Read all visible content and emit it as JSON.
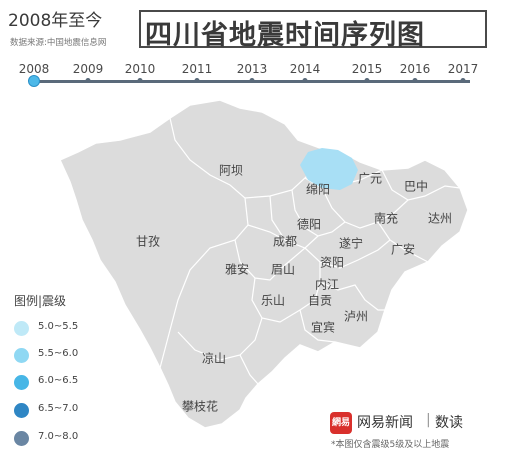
{
  "header": {
    "subtitle": "2008年至今",
    "title": "四川省地震时间序列图",
    "source": "数据来源:中国地震信息网"
  },
  "timeline": {
    "years": [
      "2008",
      "2009",
      "2010",
      "2011",
      "2013",
      "2014",
      "2015",
      "2016",
      "2017"
    ],
    "selected": "2008"
  },
  "map": {
    "region": "四川省",
    "cities": [
      "阿坝",
      "甘孜",
      "绵阳",
      "广元",
      "巴中",
      "德阳",
      "南充",
      "达州",
      "成都",
      "遂宁",
      "广安",
      "雅安",
      "眉山",
      "资阳",
      "内江",
      "乐山",
      "自贡",
      "泸州",
      "宜宾",
      "凉山",
      "攀枝花"
    ]
  },
  "quake": {
    "label_city": "绵阳",
    "color": "#a8dff5"
  },
  "legend": {
    "title": "图例|震级",
    "items": [
      {
        "label": "5.0~5.5",
        "color": "#bfe9f7"
      },
      {
        "label": "5.5~6.0",
        "color": "#8fd8f3"
      },
      {
        "label": "6.0~6.5",
        "color": "#47b6e6"
      },
      {
        "label": "6.5~7.0",
        "color": "#2f86c4"
      },
      {
        "label": "7.0~8.0",
        "color": "#6a86a3"
      }
    ]
  },
  "brand": {
    "icon_text": "網易",
    "name": "网易新闻",
    "sep": "|",
    "sub": "数读"
  },
  "footnote": "*本图仅含震级5级及以上地震"
}
